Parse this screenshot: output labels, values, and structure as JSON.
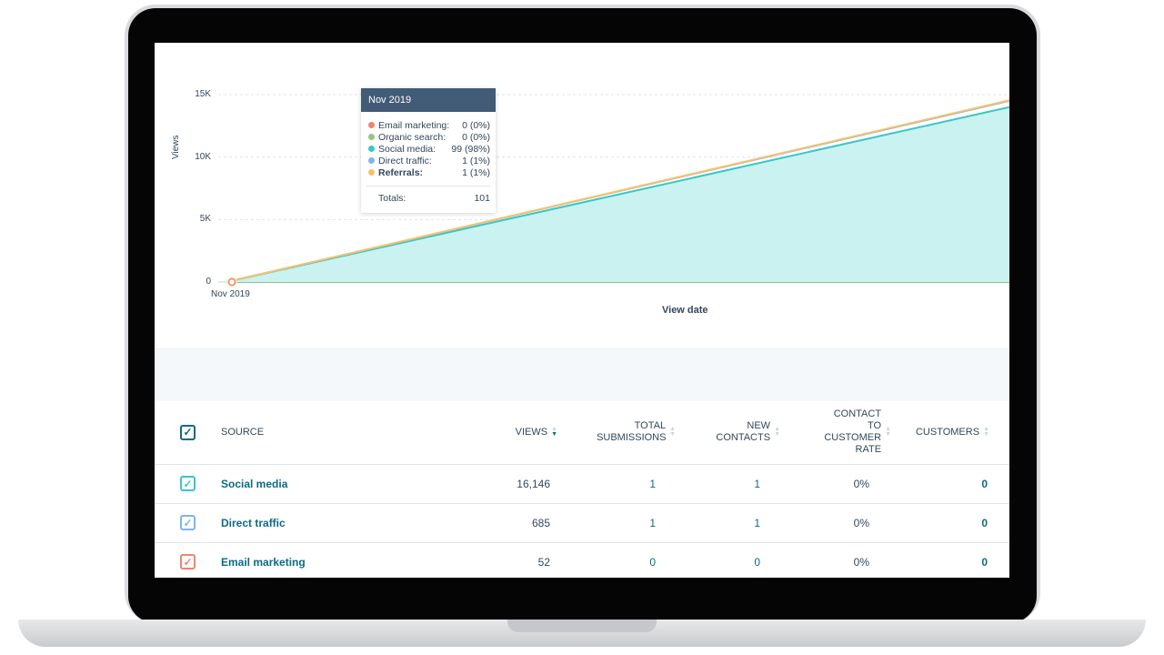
{
  "chart_data": {
    "type": "area",
    "title": "",
    "xlabel": "View date",
    "ylabel": "Views",
    "x_ticks": [
      "Nov 2019"
    ],
    "y_ticks": [
      "0",
      "5K",
      "10K",
      "15K"
    ],
    "ylim": [
      0,
      15000
    ],
    "grid": true,
    "series": [
      {
        "name": "Email marketing",
        "color": "#f2846b",
        "values": [
          0,
          0
        ]
      },
      {
        "name": "Organic search",
        "color": "#8fc981",
        "values": [
          0,
          0
        ]
      },
      {
        "name": "Social media",
        "color": "#3ac6c6",
        "values": [
          99,
          14000
        ]
      },
      {
        "name": "Direct traffic",
        "color": "#7fb4ef",
        "values": [
          1,
          500
        ]
      },
      {
        "name": "Referrals",
        "color": "#f5c26b",
        "values": [
          1,
          50
        ]
      }
    ],
    "tooltip": {
      "title": "Nov 2019",
      "rows": [
        {
          "label": "Email marketing:",
          "value": "0 (0%)",
          "color": "#f2846b"
        },
        {
          "label": "Organic search:",
          "value": "0 (0%)",
          "color": "#8fc981"
        },
        {
          "label": "Social media:",
          "value": "99 (98%)",
          "color": "#3ac6c6"
        },
        {
          "label": "Direct traffic:",
          "value": "1 (1%)",
          "color": "#7fb4ef"
        },
        {
          "label": "Referrals:",
          "value": "1 (1%)",
          "color": "#f5c26b"
        }
      ],
      "totals_label": "Totals:",
      "totals_value": "101"
    }
  },
  "table": {
    "headers": {
      "source": "SOURCE",
      "views": "VIEWS",
      "submissions": "TOTAL SUBMISSIONS",
      "contacts": "NEW CONTACTS",
      "rate": "CONTACT TO CUSTOMER RATE",
      "customers": "CUSTOMERS"
    },
    "rows": [
      {
        "source": "Social media",
        "views": "16,146",
        "submissions": "1",
        "contacts": "1",
        "rate": "0%",
        "customers": "0",
        "color": "#3ac6c6"
      },
      {
        "source": "Direct traffic",
        "views": "685",
        "submissions": "1",
        "contacts": "1",
        "rate": "0%",
        "customers": "0",
        "color": "#7fb4ef"
      },
      {
        "source": "Email marketing",
        "views": "52",
        "submissions": "0",
        "contacts": "0",
        "rate": "0%",
        "customers": "0",
        "color": "#f2846b"
      }
    ]
  }
}
